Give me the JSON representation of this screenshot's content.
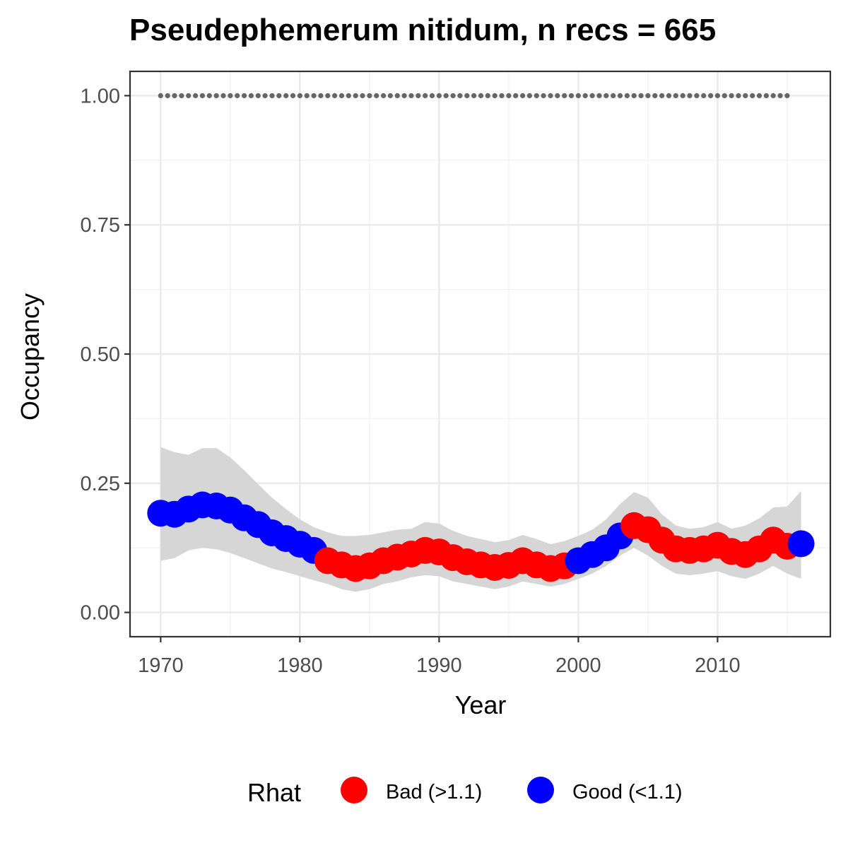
{
  "chart_data": {
    "type": "line",
    "title": "Pseudephemerum nitidum, n recs = 665",
    "xlabel": "Year",
    "ylabel": "Occupancy",
    "xlim": [
      1967.8,
      2018.1
    ],
    "ylim": [
      -0.047,
      1.047
    ],
    "x_ticks": [
      "1970",
      "1980",
      "1990",
      "2000",
      "2010"
    ],
    "y_ticks": [
      "0.00",
      "0.25",
      "0.50",
      "0.75",
      "1.00"
    ],
    "grid": true,
    "legend": {
      "title": "Rhat",
      "position": "bottom",
      "entries": [
        {
          "label": "Bad (>1.1)",
          "color": "#ff0000"
        },
        {
          "label": "Good (<1.1)",
          "color": "#0000ff"
        }
      ]
    },
    "colors": {
      "bad": "#ff0000",
      "good": "#0000ff",
      "ribbon": "#d6d6d6",
      "reference": "#666666"
    },
    "reference_line": {
      "y": 1.0,
      "x_start": 1970,
      "x_end": 2015,
      "style": "dotted"
    },
    "years": [
      1970,
      1971,
      1972,
      1973,
      1974,
      1975,
      1976,
      1977,
      1978,
      1979,
      1980,
      1981,
      1982,
      1983,
      1984,
      1985,
      1986,
      1987,
      1988,
      1989,
      1990,
      1991,
      1992,
      1993,
      1994,
      1995,
      1996,
      1997,
      1998,
      1999,
      2000,
      2001,
      2002,
      2003,
      2004,
      2005,
      2006,
      2007,
      2008,
      2009,
      2010,
      2011,
      2012,
      2013,
      2014,
      2015,
      2016
    ],
    "occupancy": [
      0.192,
      0.19,
      0.2,
      0.208,
      0.206,
      0.198,
      0.183,
      0.17,
      0.154,
      0.143,
      0.132,
      0.12,
      0.1,
      0.092,
      0.085,
      0.09,
      0.1,
      0.107,
      0.113,
      0.12,
      0.117,
      0.106,
      0.098,
      0.092,
      0.087,
      0.091,
      0.1,
      0.092,
      0.085,
      0.09,
      0.1,
      0.112,
      0.125,
      0.148,
      0.168,
      0.16,
      0.14,
      0.123,
      0.12,
      0.123,
      0.13,
      0.118,
      0.112,
      0.123,
      0.14,
      0.128,
      0.133
    ],
    "rhat": [
      "good",
      "good",
      "good",
      "good",
      "good",
      "good",
      "good",
      "good",
      "good",
      "good",
      "good",
      "good",
      "bad",
      "bad",
      "bad",
      "bad",
      "bad",
      "bad",
      "bad",
      "bad",
      "bad",
      "bad",
      "bad",
      "bad",
      "bad",
      "bad",
      "bad",
      "bad",
      "bad",
      "bad",
      "good",
      "good",
      "good",
      "good",
      "bad",
      "bad",
      "bad",
      "bad",
      "bad",
      "bad",
      "bad",
      "bad",
      "bad",
      "bad",
      "bad",
      "bad",
      "good"
    ],
    "lower": [
      0.1,
      0.105,
      0.12,
      0.125,
      0.122,
      0.115,
      0.105,
      0.095,
      0.085,
      0.078,
      0.07,
      0.062,
      0.055,
      0.045,
      0.04,
      0.045,
      0.055,
      0.06,
      0.068,
      0.072,
      0.07,
      0.06,
      0.055,
      0.05,
      0.045,
      0.05,
      0.06,
      0.055,
      0.05,
      0.055,
      0.065,
      0.075,
      0.09,
      0.11,
      0.125,
      0.11,
      0.09,
      0.075,
      0.072,
      0.075,
      0.08,
      0.07,
      0.065,
      0.075,
      0.09,
      0.075,
      0.065
    ],
    "upper": [
      0.32,
      0.31,
      0.305,
      0.318,
      0.318,
      0.3,
      0.275,
      0.248,
      0.222,
      0.2,
      0.18,
      0.165,
      0.155,
      0.148,
      0.148,
      0.15,
      0.155,
      0.16,
      0.162,
      0.175,
      0.172,
      0.158,
      0.148,
      0.142,
      0.136,
      0.14,
      0.15,
      0.142,
      0.132,
      0.138,
      0.148,
      0.16,
      0.18,
      0.21,
      0.233,
      0.222,
      0.19,
      0.168,
      0.162,
      0.165,
      0.175,
      0.162,
      0.168,
      0.182,
      0.203,
      0.205,
      0.235
    ]
  }
}
